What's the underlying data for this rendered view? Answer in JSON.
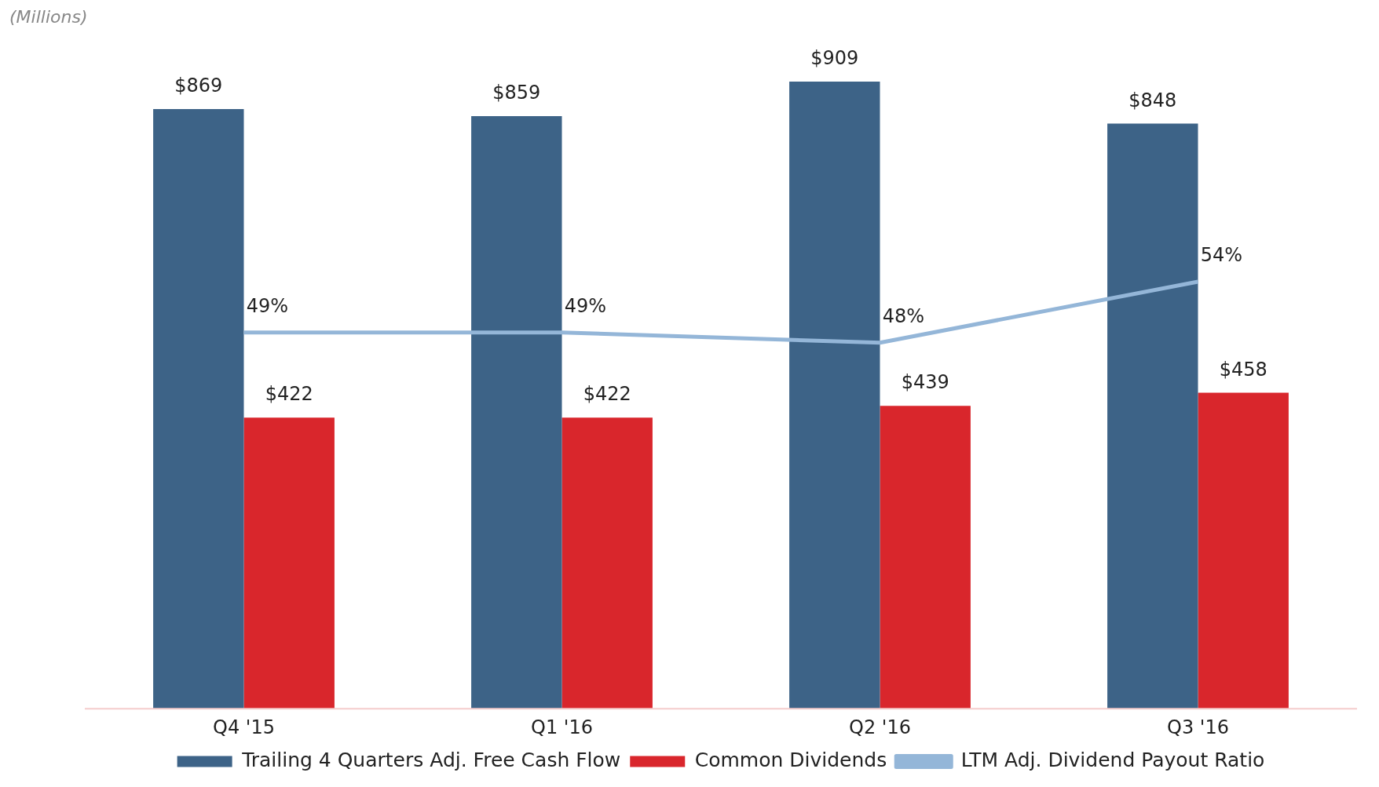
{
  "chart_data": {
    "type": "bar",
    "annotations": [
      "(Millions)"
    ],
    "categories": [
      "Q4 '15",
      "Q1 '16",
      "Q2 '16",
      "Q3 '16"
    ],
    "series": [
      {
        "name": "Trailing 4 Quarters Adj. Free Cash Flow",
        "color": "#3d6387",
        "values": [
          869,
          859,
          909,
          848
        ],
        "value_labels": [
          "$869",
          "$859",
          "$909",
          "$848"
        ]
      },
      {
        "name": "Common Dividends",
        "color": "#d9262c",
        "values": [
          422,
          422,
          439,
          458
        ],
        "value_labels": [
          "$422",
          "$422",
          "$439",
          "$458"
        ]
      },
      {
        "name": "LTM Adj. Dividend Payout Ratio",
        "type": "line",
        "axis": "y2",
        "color": "#94b6d8",
        "values": [
          49,
          49,
          48,
          54
        ],
        "value_labels": [
          "49%",
          "49%",
          "48%",
          "54%"
        ],
        "marker": "none"
      }
    ],
    "tick_labels": "x",
    "grid": false,
    "legend": "bottom"
  }
}
